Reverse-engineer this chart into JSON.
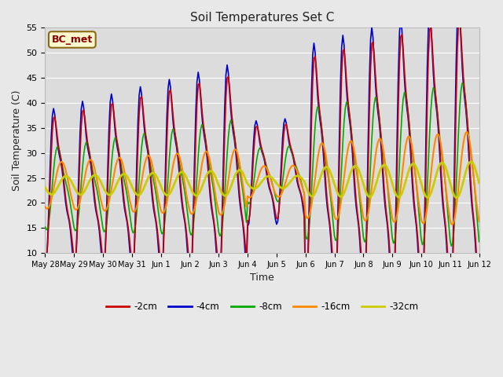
{
  "title": "Soil Temperatures Set C",
  "xlabel": "Time",
  "ylabel": "Soil Temperature (C)",
  "ylim": [
    10,
    55
  ],
  "yticks": [
    10,
    15,
    20,
    25,
    30,
    35,
    40,
    45,
    50,
    55
  ],
  "annotation_label": "BC_met",
  "annotation_color": "#8B0000",
  "annotation_bg": "#FFFACD",
  "annotation_border": "#8B6914",
  "legend_labels": [
    "-2cm",
    "-4cm",
    "-8cm",
    "-16cm",
    "-32cm"
  ],
  "line_colors": [
    "#CC0000",
    "#0000CC",
    "#00AA00",
    "#FF8800",
    "#CCCC00"
  ],
  "line_widths": [
    1.2,
    1.2,
    1.2,
    1.5,
    2.0
  ],
  "bg_color": "#E8E8E8",
  "plot_bg": "#DCDCDC",
  "figsize": [
    6.4,
    4.8
  ],
  "dpi": 100,
  "xtick_labels": [
    "May 28",
    "May 29",
    "May 30",
    "May 31",
    "Jun 1",
    "Jun 2",
    "Jun 3",
    "Jun 4",
    "Jun 5",
    "Jun 6",
    "Jun 7",
    "Jun 8",
    "Jun 9",
    "Jun 10",
    "Jun 11",
    "Jun 12"
  ]
}
